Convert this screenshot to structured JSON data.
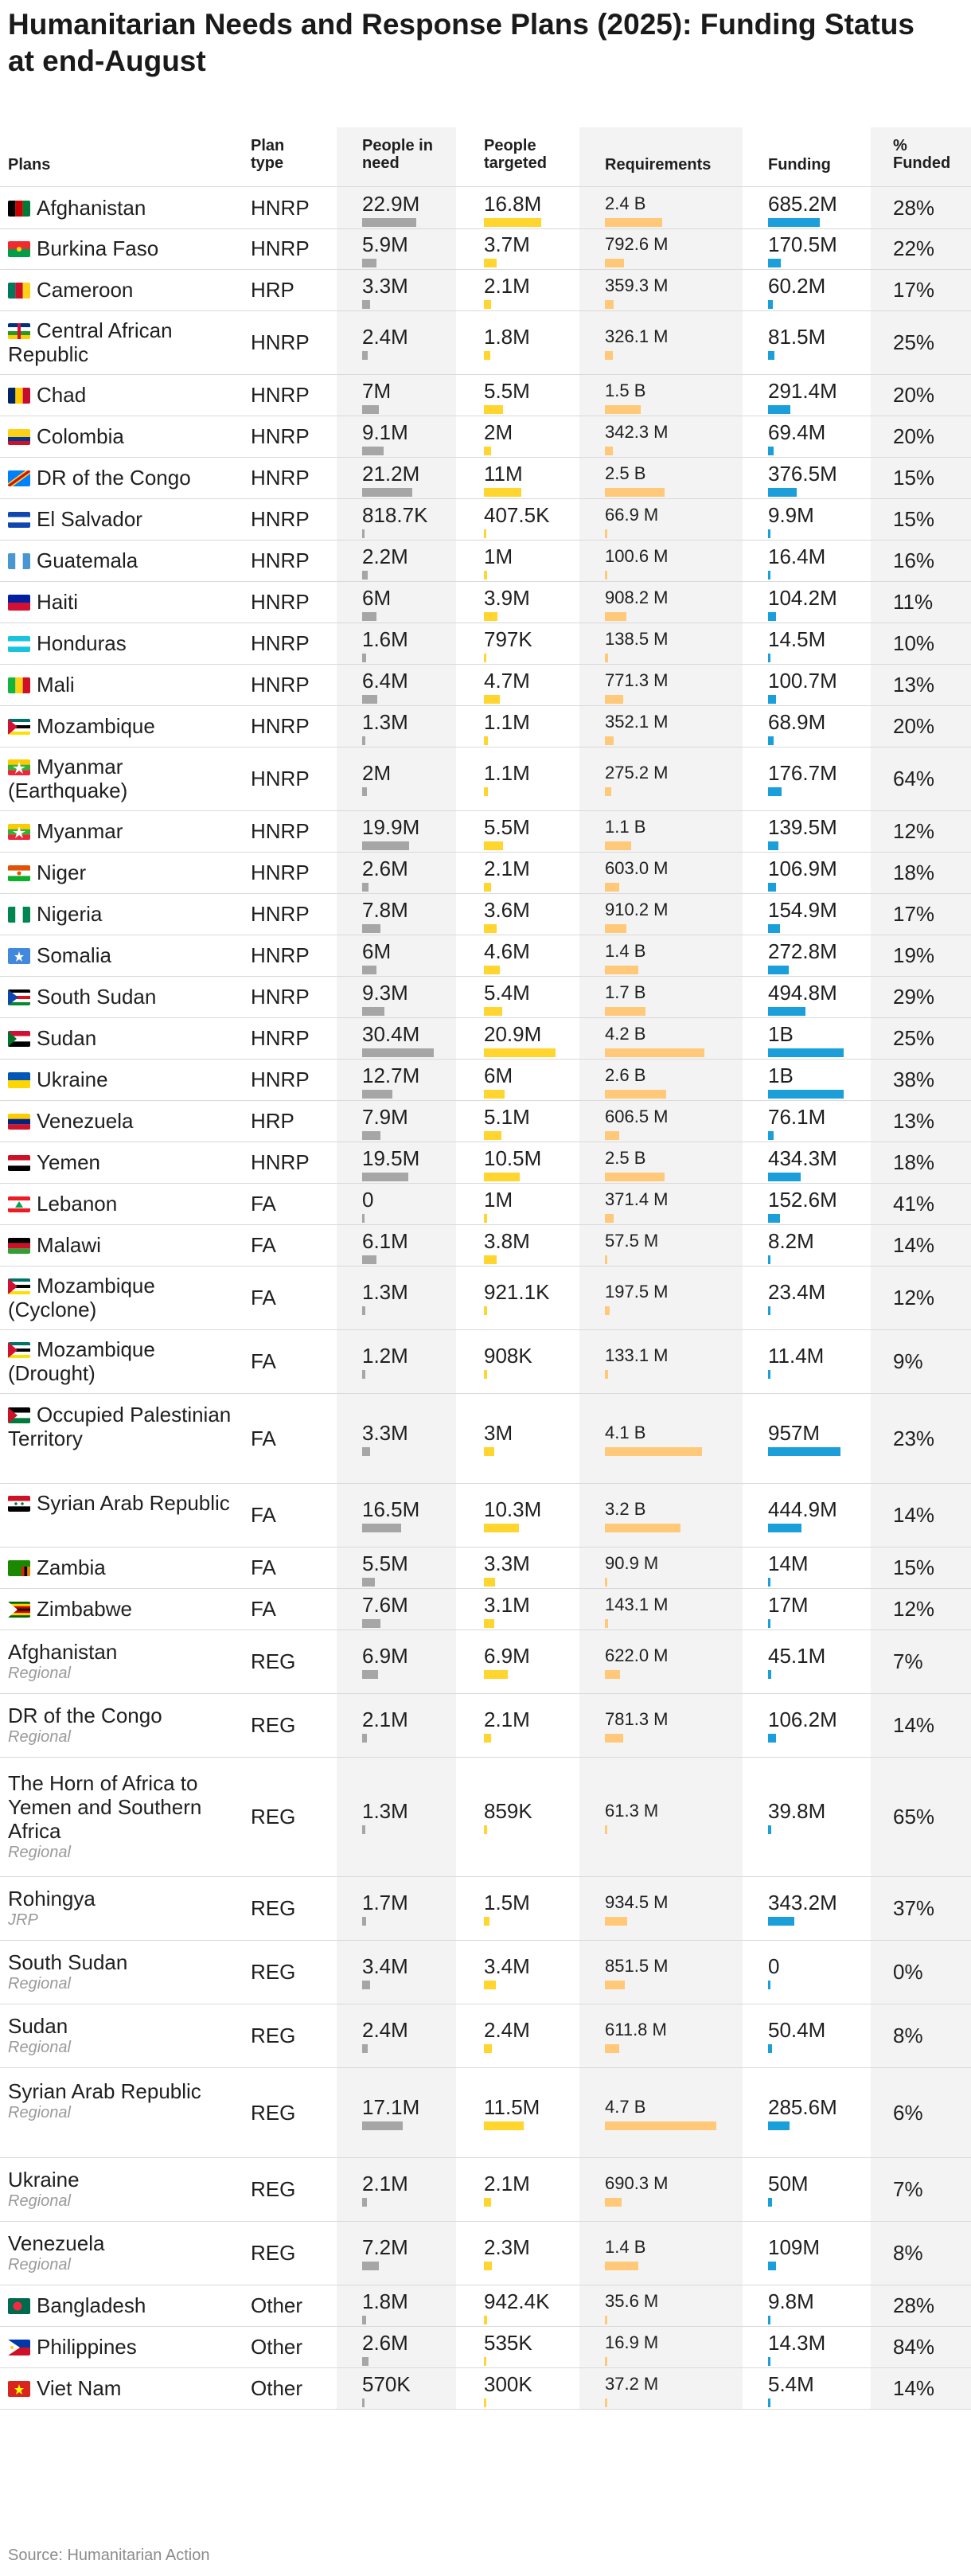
{
  "title": "Humanitarian Needs and Response Plans (2025): Funding Status at end-August",
  "source": "Source: Humanitarian Action",
  "colors": {
    "bar_people_in_need": "#a6a6a6",
    "bar_people_targeted": "#ffd52e",
    "bar_requirements": "#ffc979",
    "bar_funding": "#1a9fda",
    "column_band": "#f3f3f3",
    "subtitle_text": "#9a9a9a"
  },
  "headers": {
    "plans": "Plans",
    "plan_type": "Plan type",
    "people_in_need": "People in need",
    "people_targeted": "People targeted",
    "requirements": "Requirements",
    "funding": "Funding",
    "pct_funded": "% Funded"
  },
  "chart_data": {
    "type": "table",
    "title": "Humanitarian Needs and Response Plans (2025): Funding Status at end-August",
    "columns": [
      "Plans",
      "Plan type",
      "People in need",
      "People targeted",
      "Requirements",
      "Funding",
      "% Funded"
    ],
    "bar_columns": [
      "People in need",
      "People targeted",
      "Requirements",
      "Funding"
    ],
    "rows": [
      {
        "plan": "Afghanistan",
        "sub": "",
        "flag": "afghanistan-flag-icon",
        "type": "HNRP",
        "pin": "22.9M",
        "pin_value": 22900000,
        "pt": "16.8M",
        "pt_value": 16800000,
        "req": "2.4 B",
        "req_value": 2400000000,
        "fund": "685.2M",
        "fund_value": 685200000,
        "pct": "28%"
      },
      {
        "plan": "Burkina Faso",
        "sub": "",
        "flag": "burkina-faso-flag-icon",
        "type": "HNRP",
        "pin": "5.9M",
        "pin_value": 5900000,
        "pt": "3.7M",
        "pt_value": 3700000,
        "req": "792.6 M",
        "req_value": 792600000,
        "fund": "170.5M",
        "fund_value": 170500000,
        "pct": "22%"
      },
      {
        "plan": "Cameroon",
        "sub": "",
        "flag": "cameroon-flag-icon",
        "type": "HRP",
        "pin": "3.3M",
        "pin_value": 3300000,
        "pt": "2.1M",
        "pt_value": 2100000,
        "req": "359.3 M",
        "req_value": 359300000,
        "fund": "60.2M",
        "fund_value": 60200000,
        "pct": "17%"
      },
      {
        "plan": "Central African Republic",
        "sub": "",
        "flag": "central-african-republic-flag-icon",
        "type": "HNRP",
        "pin": "2.4M",
        "pin_value": 2400000,
        "pt": "1.8M",
        "pt_value": 1800000,
        "req": "326.1 M",
        "req_value": 326100000,
        "fund": "81.5M",
        "fund_value": 81500000,
        "pct": "25%"
      },
      {
        "plan": "Chad",
        "sub": "",
        "flag": "chad-flag-icon",
        "type": "HNRP",
        "pin": "7M",
        "pin_value": 7000000,
        "pt": "5.5M",
        "pt_value": 5500000,
        "req": "1.5 B",
        "req_value": 1500000000,
        "fund": "291.4M",
        "fund_value": 291400000,
        "pct": "20%"
      },
      {
        "plan": "Colombia",
        "sub": "",
        "flag": "colombia-flag-icon",
        "type": "HNRP",
        "pin": "9.1M",
        "pin_value": 9100000,
        "pt": "2M",
        "pt_value": 2000000,
        "req": "342.3 M",
        "req_value": 342300000,
        "fund": "69.4M",
        "fund_value": 69400000,
        "pct": "20%"
      },
      {
        "plan": "DR of the Congo",
        "sub": "",
        "flag": "dr-congo-flag-icon",
        "type": "HNRP",
        "pin": "21.2M",
        "pin_value": 21200000,
        "pt": "11M",
        "pt_value": 11000000,
        "req": "2.5 B",
        "req_value": 2500000000,
        "fund": "376.5M",
        "fund_value": 376500000,
        "pct": "15%"
      },
      {
        "plan": "El Salvador",
        "sub": "",
        "flag": "el-salvador-flag-icon",
        "type": "HNRP",
        "pin": "818.7K",
        "pin_value": 818700,
        "pt": "407.5K",
        "pt_value": 407500,
        "req": "66.9 M",
        "req_value": 66900000,
        "fund": "9.9M",
        "fund_value": 9900000,
        "pct": "15%"
      },
      {
        "plan": "Guatemala",
        "sub": "",
        "flag": "guatemala-flag-icon",
        "type": "HNRP",
        "pin": "2.2M",
        "pin_value": 2200000,
        "pt": "1M",
        "pt_value": 1000000,
        "req": "100.6 M",
        "req_value": 100600000,
        "fund": "16.4M",
        "fund_value": 16400000,
        "pct": "16%"
      },
      {
        "plan": "Haiti",
        "sub": "",
        "flag": "haiti-flag-icon",
        "type": "HNRP",
        "pin": "6M",
        "pin_value": 6000000,
        "pt": "3.9M",
        "pt_value": 3900000,
        "req": "908.2 M",
        "req_value": 908200000,
        "fund": "104.2M",
        "fund_value": 104200000,
        "pct": "11%"
      },
      {
        "plan": "Honduras",
        "sub": "",
        "flag": "honduras-flag-icon",
        "type": "HNRP",
        "pin": "1.6M",
        "pin_value": 1600000,
        "pt": "797K",
        "pt_value": 797000,
        "req": "138.5 M",
        "req_value": 138500000,
        "fund": "14.5M",
        "fund_value": 14500000,
        "pct": "10%"
      },
      {
        "plan": "Mali",
        "sub": "",
        "flag": "mali-flag-icon",
        "type": "HNRP",
        "pin": "6.4M",
        "pin_value": 6400000,
        "pt": "4.7M",
        "pt_value": 4700000,
        "req": "771.3 M",
        "req_value": 771300000,
        "fund": "100.7M",
        "fund_value": 100700000,
        "pct": "13%"
      },
      {
        "plan": "Mozambique",
        "sub": "",
        "flag": "mozambique-flag-icon",
        "type": "HNRP",
        "pin": "1.3M",
        "pin_value": 1300000,
        "pt": "1.1M",
        "pt_value": 1100000,
        "req": "352.1 M",
        "req_value": 352100000,
        "fund": "68.9M",
        "fund_value": 68900000,
        "pct": "20%"
      },
      {
        "plan": "Myanmar (Earthquake)",
        "sub": "",
        "flag": "myanmar-flag-icon",
        "type": "HNRP",
        "pin": "2M",
        "pin_value": 2000000,
        "pt": "1.1M",
        "pt_value": 1100000,
        "req": "275.2 M",
        "req_value": 275200000,
        "fund": "176.7M",
        "fund_value": 176700000,
        "pct": "64%"
      },
      {
        "plan": "Myanmar",
        "sub": "",
        "flag": "myanmar-flag-icon",
        "type": "HNRP",
        "pin": "19.9M",
        "pin_value": 19900000,
        "pt": "5.5M",
        "pt_value": 5500000,
        "req": "1.1 B",
        "req_value": 1100000000,
        "fund": "139.5M",
        "fund_value": 139500000,
        "pct": "12%"
      },
      {
        "plan": "Niger",
        "sub": "",
        "flag": "niger-flag-icon",
        "type": "HNRP",
        "pin": "2.6M",
        "pin_value": 2600000,
        "pt": "2.1M",
        "pt_value": 2100000,
        "req": "603.0 M",
        "req_value": 603000000,
        "fund": "106.9M",
        "fund_value": 106900000,
        "pct": "18%"
      },
      {
        "plan": "Nigeria",
        "sub": "",
        "flag": "nigeria-flag-icon",
        "type": "HNRP",
        "pin": "7.8M",
        "pin_value": 7800000,
        "pt": "3.6M",
        "pt_value": 3600000,
        "req": "910.2 M",
        "req_value": 910200000,
        "fund": "154.9M",
        "fund_value": 154900000,
        "pct": "17%"
      },
      {
        "plan": "Somalia",
        "sub": "",
        "flag": "somalia-flag-icon",
        "type": "HNRP",
        "pin": "6M",
        "pin_value": 6000000,
        "pt": "4.6M",
        "pt_value": 4600000,
        "req": "1.4 B",
        "req_value": 1400000000,
        "fund": "272.8M",
        "fund_value": 272800000,
        "pct": "19%"
      },
      {
        "plan": "South Sudan",
        "sub": "",
        "flag": "south-sudan-flag-icon",
        "type": "HNRP",
        "pin": "9.3M",
        "pin_value": 9300000,
        "pt": "5.4M",
        "pt_value": 5400000,
        "req": "1.7 B",
        "req_value": 1700000000,
        "fund": "494.8M",
        "fund_value": 494800000,
        "pct": "29%"
      },
      {
        "plan": "Sudan",
        "sub": "",
        "flag": "sudan-flag-icon",
        "type": "HNRP",
        "pin": "30.4M",
        "pin_value": 30400000,
        "pt": "20.9M",
        "pt_value": 20900000,
        "req": "4.2 B",
        "req_value": 4200000000,
        "fund": "1B",
        "fund_value": 1000000000,
        "pct": "25%"
      },
      {
        "plan": "Ukraine",
        "sub": "",
        "flag": "ukraine-flag-icon",
        "type": "HNRP",
        "pin": "12.7M",
        "pin_value": 12700000,
        "pt": "6M",
        "pt_value": 6000000,
        "req": "2.6 B",
        "req_value": 2600000000,
        "fund": "1B",
        "fund_value": 1000000000,
        "pct": "38%"
      },
      {
        "plan": "Venezuela",
        "sub": "",
        "flag": "venezuela-flag-icon",
        "type": "HRP",
        "pin": "7.9M",
        "pin_value": 7900000,
        "pt": "5.1M",
        "pt_value": 5100000,
        "req": "606.5 M",
        "req_value": 606500000,
        "fund": "76.1M",
        "fund_value": 76100000,
        "pct": "13%"
      },
      {
        "plan": "Yemen",
        "sub": "",
        "flag": "yemen-flag-icon",
        "type": "HNRP",
        "pin": "19.5M",
        "pin_value": 19500000,
        "pt": "10.5M",
        "pt_value": 10500000,
        "req": "2.5 B",
        "req_value": 2500000000,
        "fund": "434.3M",
        "fund_value": 434300000,
        "pct": "18%"
      },
      {
        "plan": "Lebanon",
        "sub": "",
        "flag": "lebanon-flag-icon",
        "type": "FA",
        "pin": "0",
        "pin_value": 0,
        "pt": "1M",
        "pt_value": 1000000,
        "req": "371.4 M",
        "req_value": 371400000,
        "fund": "152.6M",
        "fund_value": 152600000,
        "pct": "41%"
      },
      {
        "plan": "Malawi",
        "sub": "",
        "flag": "malawi-flag-icon",
        "type": "FA",
        "pin": "6.1M",
        "pin_value": 6100000,
        "pt": "3.8M",
        "pt_value": 3800000,
        "req": "57.5 M",
        "req_value": 57500000,
        "fund": "8.2M",
        "fund_value": 8200000,
        "pct": "14%"
      },
      {
        "plan": "Mozambique (Cyclone)",
        "sub": "",
        "flag": "mozambique-flag-icon",
        "type": "FA",
        "pin": "1.3M",
        "pin_value": 1300000,
        "pt": "921.1K",
        "pt_value": 921100,
        "req": "197.5 M",
        "req_value": 197500000,
        "fund": "23.4M",
        "fund_value": 23400000,
        "pct": "12%"
      },
      {
        "plan": "Mozambique (Drought)",
        "sub": "",
        "flag": "mozambique-flag-icon",
        "type": "FA",
        "pin": "1.2M",
        "pin_value": 1200000,
        "pt": "908K",
        "pt_value": 908000,
        "req": "133.1 M",
        "req_value": 133100000,
        "fund": "11.4M",
        "fund_value": 11400000,
        "pct": "9%"
      },
      {
        "plan": "Occupied Palestinian Territory",
        "sub": "",
        "flag": "palestine-flag-icon",
        "type": "FA",
        "pin": "3.3M",
        "pin_value": 3300000,
        "pt": "3M",
        "pt_value": 3000000,
        "req": "4.1 B",
        "req_value": 4100000000,
        "fund": "957M",
        "fund_value": 957000000,
        "pct": "23%"
      },
      {
        "plan": "Syrian Arab Republic",
        "sub": "",
        "flag": "syria-flag-icon",
        "type": "FA",
        "pin": "16.5M",
        "pin_value": 16500000,
        "pt": "10.3M",
        "pt_value": 10300000,
        "req": "3.2 B",
        "req_value": 3200000000,
        "fund": "444.9M",
        "fund_value": 444900000,
        "pct": "14%"
      },
      {
        "plan": "Zambia",
        "sub": "",
        "flag": "zambia-flag-icon",
        "type": "FA",
        "pin": "5.5M",
        "pin_value": 5500000,
        "pt": "3.3M",
        "pt_value": 3300000,
        "req": "90.9 M",
        "req_value": 90900000,
        "fund": "14M",
        "fund_value": 14000000,
        "pct": "15%"
      },
      {
        "plan": "Zimbabwe",
        "sub": "",
        "flag": "zimbabwe-flag-icon",
        "type": "FA",
        "pin": "7.6M",
        "pin_value": 7600000,
        "pt": "3.1M",
        "pt_value": 3100000,
        "req": "143.1 M",
        "req_value": 143100000,
        "fund": "17M",
        "fund_value": 17000000,
        "pct": "12%"
      },
      {
        "plan": "Afghanistan",
        "sub": "Regional",
        "flag": "",
        "type": "REG",
        "pin": "6.9M",
        "pin_value": 6900000,
        "pt": "6.9M",
        "pt_value": 6900000,
        "req": "622.0 M",
        "req_value": 622000000,
        "fund": "45.1M",
        "fund_value": 45100000,
        "pct": "7%"
      },
      {
        "plan": "DR of the Congo",
        "sub": "Regional",
        "flag": "",
        "type": "REG",
        "pin": "2.1M",
        "pin_value": 2100000,
        "pt": "2.1M",
        "pt_value": 2100000,
        "req": "781.3 M",
        "req_value": 781300000,
        "fund": "106.2M",
        "fund_value": 106200000,
        "pct": "14%"
      },
      {
        "plan": "The Horn of Africa to Yemen and Southern Africa",
        "sub": "Regional",
        "flag": "",
        "type": "REG",
        "pin": "1.3M",
        "pin_value": 1300000,
        "pt": "859K",
        "pt_value": 859000,
        "req": "61.3 M",
        "req_value": 61300000,
        "fund": "39.8M",
        "fund_value": 39800000,
        "pct": "65%"
      },
      {
        "plan": "Rohingya",
        "sub": "JRP",
        "flag": "",
        "type": "REG",
        "pin": "1.7M",
        "pin_value": 1700000,
        "pt": "1.5M",
        "pt_value": 1500000,
        "req": "934.5 M",
        "req_value": 934500000,
        "fund": "343.2M",
        "fund_value": 343200000,
        "pct": "37%"
      },
      {
        "plan": "South Sudan",
        "sub": "Regional",
        "flag": "",
        "type": "REG",
        "pin": "3.4M",
        "pin_value": 3400000,
        "pt": "3.4M",
        "pt_value": 3400000,
        "req": "851.5 M",
        "req_value": 851500000,
        "fund": "0",
        "fund_value": 0,
        "pct": "0%"
      },
      {
        "plan": "Sudan",
        "sub": "Regional",
        "flag": "",
        "type": "REG",
        "pin": "2.4M",
        "pin_value": 2400000,
        "pt": "2.4M",
        "pt_value": 2400000,
        "req": "611.8 M",
        "req_value": 611800000,
        "fund": "50.4M",
        "fund_value": 50400000,
        "pct": "8%"
      },
      {
        "plan": "Syrian Arab Republic",
        "sub": "Regional",
        "flag": "",
        "type": "REG",
        "pin": "17.1M",
        "pin_value": 17100000,
        "pt": "11.5M",
        "pt_value": 11500000,
        "req": "4.7 B",
        "req_value": 4700000000,
        "fund": "285.6M",
        "fund_value": 285600000,
        "pct": "6%"
      },
      {
        "plan": "Ukraine",
        "sub": "Regional",
        "flag": "",
        "type": "REG",
        "pin": "2.1M",
        "pin_value": 2100000,
        "pt": "2.1M",
        "pt_value": 2100000,
        "req": "690.3 M",
        "req_value": 690300000,
        "fund": "50M",
        "fund_value": 50000000,
        "pct": "7%"
      },
      {
        "plan": "Venezuela",
        "sub": "Regional",
        "flag": "",
        "type": "REG",
        "pin": "7.2M",
        "pin_value": 7200000,
        "pt": "2.3M",
        "pt_value": 2300000,
        "req": "1.4 B",
        "req_value": 1400000000,
        "fund": "109M",
        "fund_value": 109000000,
        "pct": "8%"
      },
      {
        "plan": "Bangladesh",
        "sub": "",
        "flag": "bangladesh-flag-icon",
        "type": "Other",
        "pin": "1.8M",
        "pin_value": 1800000,
        "pt": "942.4K",
        "pt_value": 942400,
        "req": "35.6 M",
        "req_value": 35600000,
        "fund": "9.8M",
        "fund_value": 9800000,
        "pct": "28%"
      },
      {
        "plan": "Philippines",
        "sub": "",
        "flag": "philippines-flag-icon",
        "type": "Other",
        "pin": "2.6M",
        "pin_value": 2600000,
        "pt": "535K",
        "pt_value": 535000,
        "req": "16.9 M",
        "req_value": 16900000,
        "fund": "14.3M",
        "fund_value": 14300000,
        "pct": "84%"
      },
      {
        "plan": "Viet Nam",
        "sub": "",
        "flag": "viet-nam-flag-icon",
        "type": "Other",
        "pin": "570K",
        "pin_value": 570000,
        "pt": "300K",
        "pt_value": 300000,
        "req": "37.2 M",
        "req_value": 37200000,
        "fund": "5.4M",
        "fund_value": 5400000,
        "pct": "14%"
      }
    ]
  }
}
